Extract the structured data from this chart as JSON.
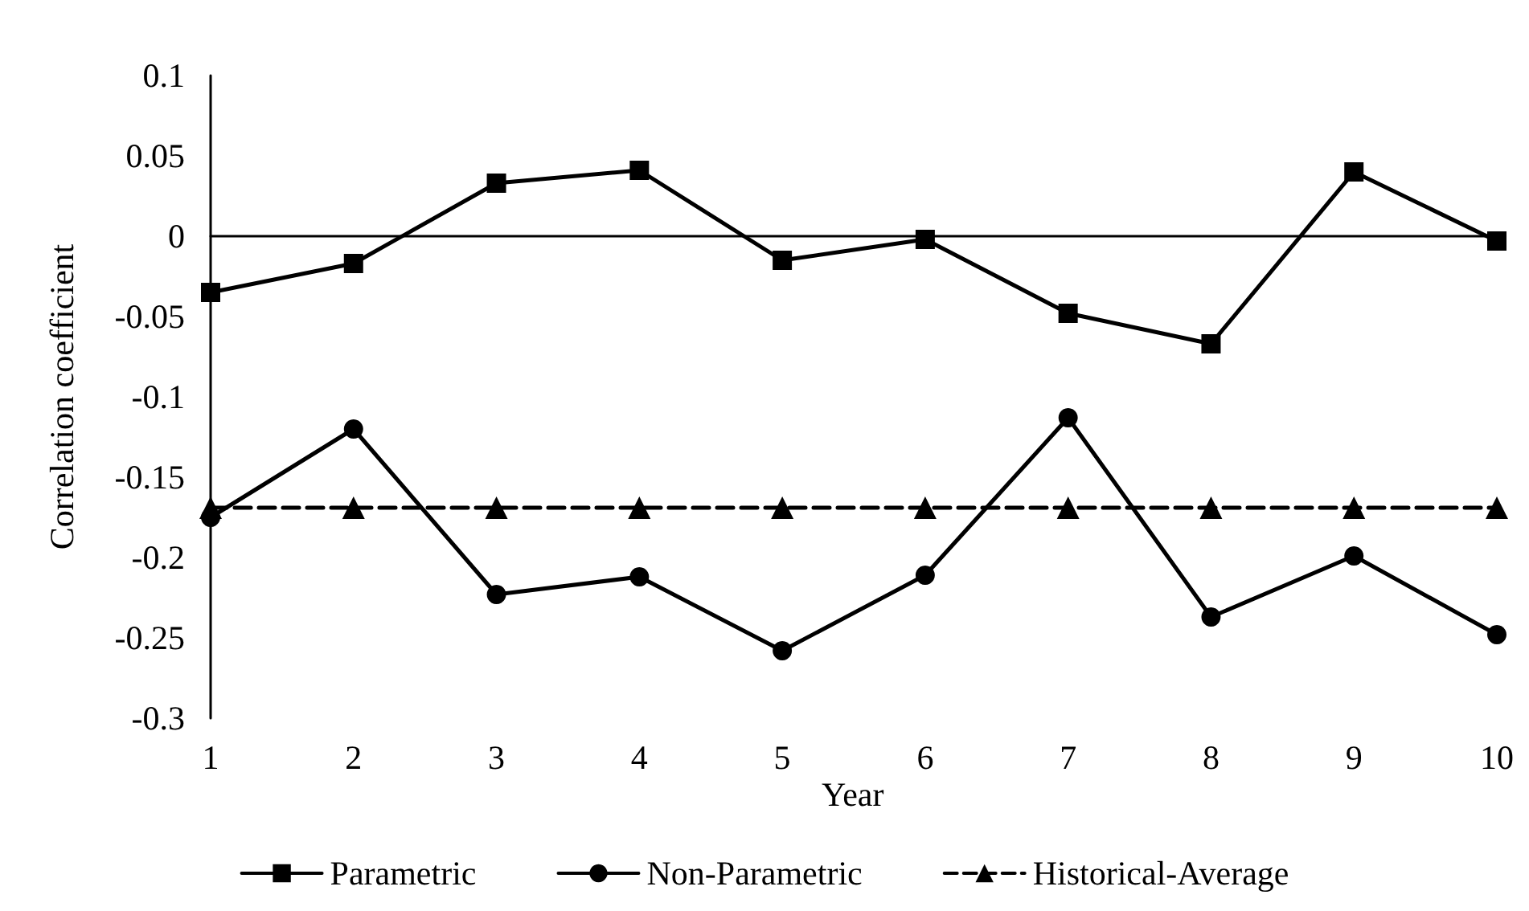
{
  "chart_data": {
    "type": "line",
    "xlabel": "Year",
    "ylabel": "Correlation coefficient",
    "categories": [
      "1",
      "2",
      "3",
      "4",
      "5",
      "6",
      "7",
      "8",
      "9",
      "10"
    ],
    "series": [
      {
        "name": "Parametric",
        "color": "#000000",
        "marker": "square",
        "line_style": "solid",
        "values": [
          -0.035,
          -0.017,
          0.033,
          0.041,
          -0.015,
          -0.002,
          -0.048,
          -0.067,
          0.04,
          -0.003
        ]
      },
      {
        "name": "Non-Parametric",
        "color": "#000000",
        "marker": "circle",
        "line_style": "solid",
        "values": [
          -0.175,
          -0.12,
          -0.223,
          -0.212,
          -0.258,
          -0.211,
          -0.113,
          -0.237,
          -0.199,
          -0.248
        ]
      },
      {
        "name": "Historical-Average",
        "color": "#000000",
        "marker": "triangle",
        "line_style": "dashed",
        "values": [
          -0.169,
          -0.169,
          -0.169,
          -0.169,
          -0.169,
          -0.169,
          -0.169,
          -0.169,
          -0.169,
          -0.169
        ]
      }
    ],
    "ylim": [
      -0.3,
      0.1
    ],
    "yticks": [
      -0.3,
      -0.25,
      -0.2,
      -0.15,
      -0.1,
      -0.05,
      0,
      0.05,
      0.1
    ],
    "grid": false,
    "legend": "bottom"
  }
}
